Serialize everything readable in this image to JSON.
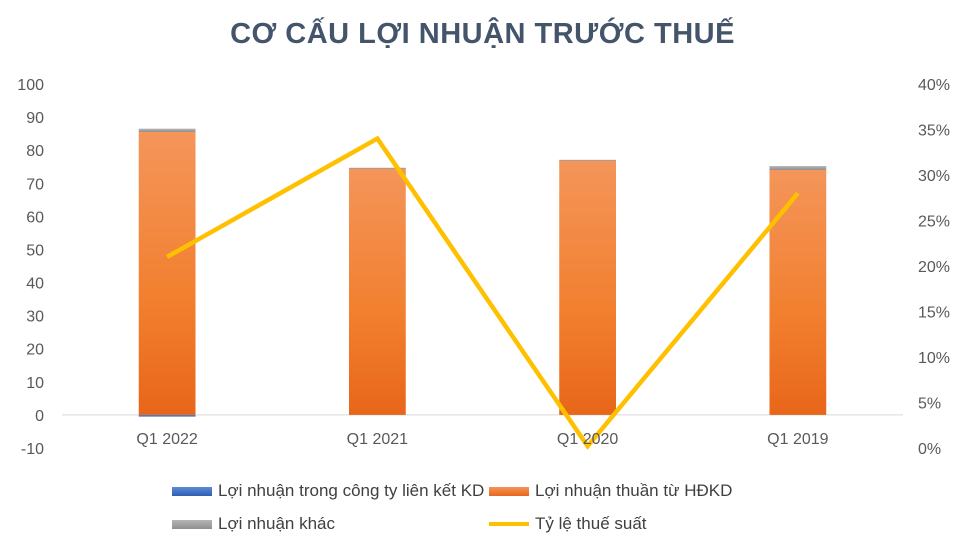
{
  "chart_data": {
    "type": "bar",
    "title": "CƠ CẤU LỢI NHUẬN TRƯỚC THUẾ",
    "categories": [
      "Q1 2022",
      "Q1 2021",
      "Q1 2020",
      "Q1 2019"
    ],
    "y_left": {
      "ylim": [
        -10,
        100
      ],
      "ticks": [
        "100",
        "90",
        "80",
        "70",
        "60",
        "50",
        "40",
        "30",
        "20",
        "10",
        "0",
        "-10"
      ]
    },
    "y_right": {
      "ylim": [
        0,
        0.4
      ],
      "ticks": [
        "40%",
        "35%",
        "30%",
        "25%",
        "20%",
        "15%",
        "10%",
        "5%",
        "0%"
      ]
    },
    "series": [
      {
        "name": "Lợi nhuận trong công ty liên kết KD",
        "kind": "stacked-bar",
        "axis": "left",
        "color": "#4472c4",
        "values": [
          -0.5,
          0,
          0,
          0
        ]
      },
      {
        "name": "Lợi nhuận thuần từ HĐKD",
        "kind": "stacked-bar",
        "axis": "left",
        "color": "#f28a3c",
        "values": [
          85.5,
          74.5,
          77,
          74
        ]
      },
      {
        "name": "Lợi nhuận khác",
        "kind": "stacked-bar",
        "axis": "left",
        "color": "#a5a5a5",
        "values": [
          1,
          0.2,
          0.1,
          1.2
        ]
      },
      {
        "name": "Tỷ lệ thuế suất",
        "kind": "line",
        "axis": "right",
        "color": "#ffc000",
        "values": [
          0.21,
          0.34,
          0.002,
          0.28
        ]
      }
    ],
    "legend_position": "bottom",
    "grid": false
  }
}
